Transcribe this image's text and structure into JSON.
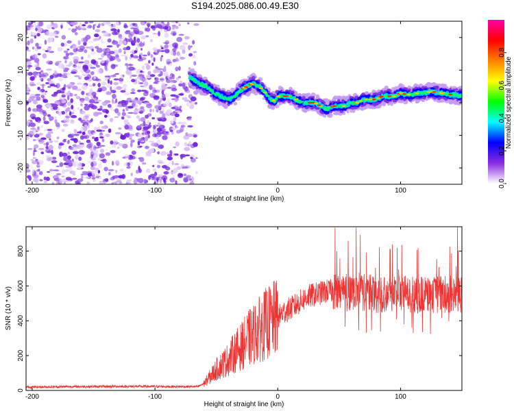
{
  "figure_title": "S194.2025.086.00.49.E30",
  "chart_data": [
    {
      "type": "heatmap",
      "title": "S194.2025.086.00.49.E30",
      "xlabel": "Height of straight line (km)",
      "ylabel": "Frequency (Hz)",
      "xlim": [
        -205,
        150
      ],
      "ylim": [
        -25,
        25
      ],
      "x_ticks": [
        -200,
        -100,
        0,
        100
      ],
      "y_ticks": [
        -20,
        -10,
        0,
        10,
        20
      ],
      "colorbar": {
        "label": "Normalized spectral amplitude",
        "range": [
          0,
          1
        ],
        "ticks": [
          0.0,
          0.2,
          0.4,
          0.6,
          0.8
        ],
        "tick_labels": [
          "0.0",
          "0.2",
          "0.4",
          "0.6",
          "0.8"
        ],
        "colormap": [
          "#ffffff",
          "#8a2be2",
          "#0000ff",
          "#00ffff",
          "#00ff00",
          "#ffff00",
          "#ff8000",
          "#ff0000",
          "#ff00aa"
        ]
      },
      "noise_region_x": [
        -205,
        -72
      ],
      "signal_trace": {
        "x": [
          -72,
          -65,
          -58,
          -52,
          -46,
          -40,
          -35,
          -30,
          -25,
          -20,
          -15,
          -10,
          -6,
          -2,
          0,
          5,
          10,
          15,
          20,
          25,
          30,
          35,
          40,
          45,
          50,
          55,
          60,
          65,
          70,
          75,
          80,
          85,
          90,
          95,
          100,
          105,
          110,
          115,
          120,
          125,
          130,
          135,
          140,
          145,
          150
        ],
        "y": [
          8,
          6,
          5,
          3,
          2,
          1,
          2,
          4,
          5,
          6,
          5,
          3,
          1,
          0.5,
          2,
          2,
          2,
          1,
          0,
          0,
          0,
          -1,
          -2,
          -1,
          -1,
          -1,
          0,
          0,
          1,
          1,
          1,
          2,
          2,
          2,
          3,
          2.5,
          2.5,
          3,
          3,
          3.5,
          3,
          3,
          2.5,
          2.5,
          2
        ]
      },
      "grid": false
    },
    {
      "type": "line",
      "xlabel": "Height of straight line (km)",
      "ylabel": "SNR (10 * v/v)",
      "xlim": [
        -205,
        150
      ],
      "ylim": [
        0,
        940
      ],
      "x_ticks": [
        -200,
        -100,
        0,
        100
      ],
      "y_ticks": [
        0,
        200,
        400,
        600,
        800
      ],
      "line_color": "#ee3333",
      "series": [
        {
          "x": [
            -205,
            -190,
            -170,
            -150,
            -130,
            -110,
            -90,
            -75,
            -65,
            -60,
            -55,
            -50,
            -45,
            -40,
            -35,
            -30,
            -25,
            -20,
            -15,
            -10,
            -5,
            0,
            5,
            10,
            15,
            20,
            25,
            30,
            35,
            40,
            45,
            50,
            55,
            60,
            65,
            70,
            75,
            80,
            90,
            100,
            110,
            120,
            130,
            140,
            150
          ],
          "values": [
            20,
            20,
            22,
            22,
            23,
            23,
            22,
            22,
            22,
            40,
            80,
            120,
            150,
            180,
            220,
            250,
            290,
            320,
            350,
            380,
            400,
            420,
            450,
            470,
            490,
            520,
            540,
            550,
            560,
            570,
            570,
            580,
            560,
            570,
            570,
            560,
            560,
            550,
            560,
            560,
            550,
            550,
            550,
            550,
            545
          ]
        }
      ],
      "grid": false
    }
  ]
}
